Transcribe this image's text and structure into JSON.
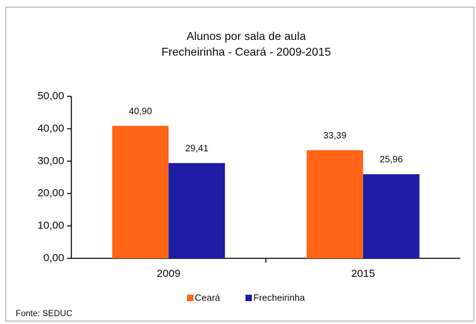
{
  "chart_data": {
    "type": "bar",
    "title": "Alunos por sala de aula",
    "subtitle": "Frecheirinha - Ceará - 2009-2015",
    "categories": [
      "2009",
      "2015"
    ],
    "series": [
      {
        "name": "Ceará",
        "color": "#ff6417",
        "values": [
          40.9,
          33.39
        ],
        "value_labels": [
          "40,90",
          "33,39"
        ]
      },
      {
        "name": "Frecheirinha",
        "color": "#1c1ca4",
        "values": [
          29.41,
          25.96
        ],
        "value_labels": [
          "29,41",
          "25,96"
        ]
      }
    ],
    "ylim": [
      0,
      50
    ],
    "yticks": [
      {
        "value": 0,
        "label": "0,00"
      },
      {
        "value": 10,
        "label": "10,00"
      },
      {
        "value": 20,
        "label": "20,00"
      },
      {
        "value": 30,
        "label": "30,00"
      },
      {
        "value": 40,
        "label": "40,00"
      },
      {
        "value": 50,
        "label": "50,00"
      }
    ],
    "legend": "bottom",
    "source": "Fonte: SEDUC"
  }
}
